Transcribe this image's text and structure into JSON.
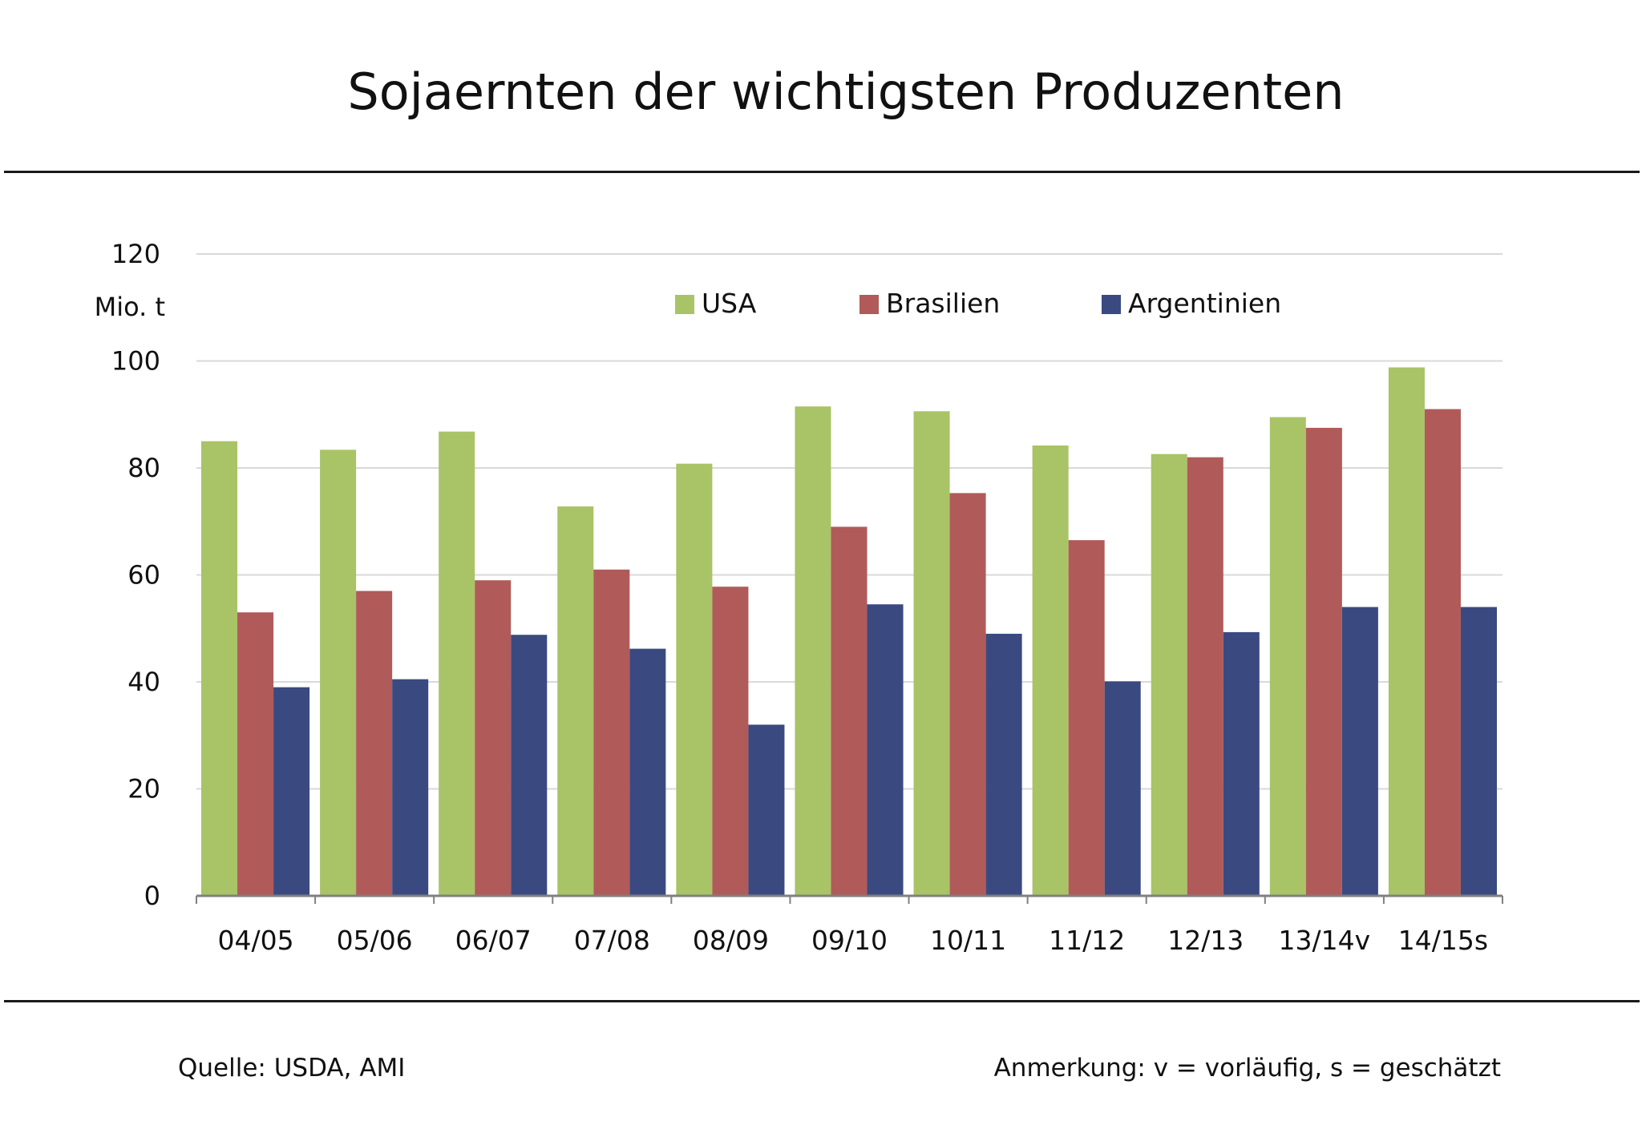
{
  "title": "Sojaernten der wichtigsten Produzenten",
  "footer": {
    "source": "Quelle: USDA, AMI",
    "note": "Anmerkung: v = vorläufig, s = geschätzt"
  },
  "chart_data": {
    "type": "bar",
    "title": "Sojaernten der wichtigsten Produzenten",
    "ylabel": "Mio. t",
    "xlabel": "",
    "ylim": [
      0,
      120
    ],
    "yticks": [
      0,
      20,
      40,
      60,
      80,
      100,
      120
    ],
    "grid": true,
    "legend_position": "top",
    "categories": [
      "04/05",
      "05/06",
      "06/07",
      "07/08",
      "08/09",
      "09/10",
      "10/11",
      "11/12",
      "12/13",
      "13/14v",
      "14/15s"
    ],
    "series": [
      {
        "name": "USA",
        "color": "#a9c367",
        "values": [
          85.0,
          83.4,
          86.8,
          72.8,
          80.8,
          91.5,
          90.6,
          84.2,
          82.6,
          89.5,
          98.8
        ]
      },
      {
        "name": "Brasilien",
        "color": "#b05b59",
        "values": [
          53.0,
          57.0,
          59.0,
          61.0,
          57.8,
          69.0,
          75.3,
          66.5,
          82.0,
          87.5,
          91.0
        ]
      },
      {
        "name": "Argentinien",
        "color": "#3a4a80",
        "values": [
          39.0,
          40.5,
          48.8,
          46.2,
          32.0,
          54.5,
          49.0,
          40.1,
          49.3,
          54.0,
          54.0
        ]
      }
    ]
  }
}
